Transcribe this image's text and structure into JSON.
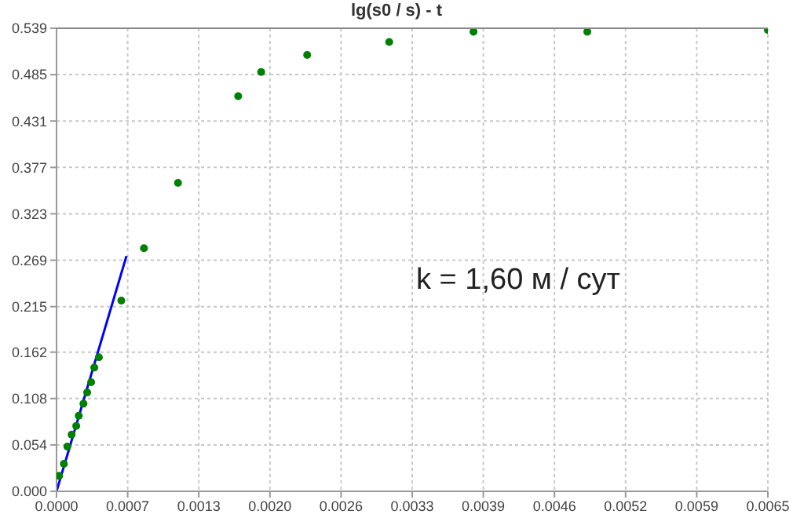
{
  "chart_data": {
    "type": "scatter",
    "title": "lg(s0 / s) - t",
    "annotations": [
      "k = 1,60 м / сут"
    ],
    "series": [
      {
        "color": "#008000",
        "marker": "circle",
        "x": [
          2.4e-05,
          6.7e-05,
          9.9e-05,
          0.000138,
          0.00018,
          0.000203,
          0.000246,
          0.00028,
          0.000316,
          0.000345,
          0.000387,
          0.000592,
          0.000799,
          0.00111,
          0.00166,
          0.00187,
          0.00229,
          0.00304,
          0.00381,
          0.00485,
          0.0065
        ],
        "values": [
          0.018,
          0.032,
          0.052,
          0.066,
          0.076,
          0.088,
          0.102,
          0.115,
          0.127,
          0.144,
          0.156,
          0.222,
          0.283,
          0.359,
          0.46,
          0.488,
          0.508,
          0.523,
          0.535,
          0.535,
          0.537
        ]
      },
      {
        "type": "line",
        "color": "#0000ff",
        "marker": "none",
        "x": [
          0,
          0.000639
        ],
        "values": [
          0,
          0.274
        ]
      }
    ],
    "xlim": [
      0,
      0.0065
    ],
    "xticks": [
      {
        "value": 0,
        "label": "0.0000"
      },
      {
        "value": 0.00065,
        "label": "0.0007"
      },
      {
        "value": 0.0013,
        "label": "0.0013"
      },
      {
        "value": 0.00195,
        "label": "0.0020"
      },
      {
        "value": 0.0026,
        "label": "0.0026"
      },
      {
        "value": 0.00325,
        "label": "0.0033"
      },
      {
        "value": 0.0039,
        "label": "0.0039"
      },
      {
        "value": 0.00455,
        "label": "0.0046"
      },
      {
        "value": 0.0052,
        "label": "0.0052"
      },
      {
        "value": 0.00585,
        "label": "0.0059"
      },
      {
        "value": 0.0065,
        "label": "0.0065"
      }
    ],
    "ylim": [
      0,
      0.539
    ],
    "yticks": [
      {
        "value": 0,
        "label": "0.000"
      },
      0.054,
      0.108,
      0.162,
      0.215,
      0.269,
      0.323,
      0.377,
      0.431,
      0.485,
      0.539
    ],
    "grid": true
  }
}
